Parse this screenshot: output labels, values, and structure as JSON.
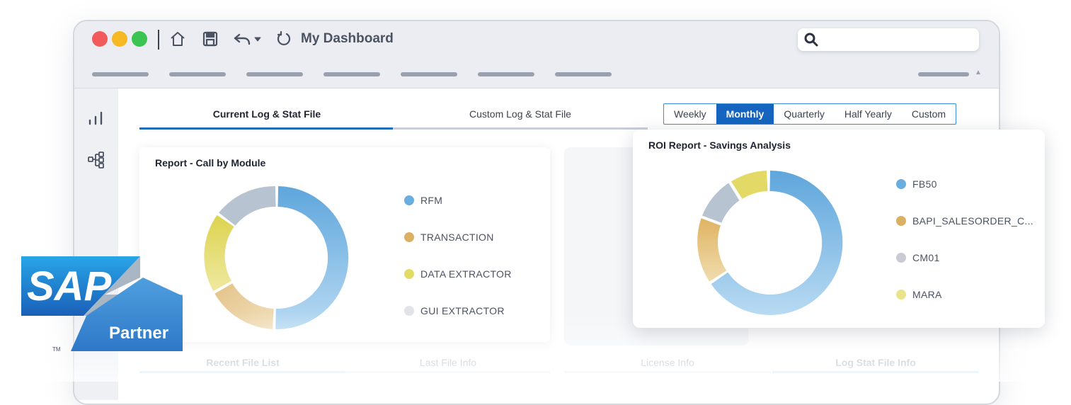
{
  "window": {
    "title": "My Dashboard",
    "search": {
      "placeholder": ""
    },
    "toolbar_icons": [
      "home-icon",
      "save-icon",
      "undo-icon",
      "refresh-icon"
    ],
    "traffic_lights": {
      "red": "#f25b5b",
      "yellow": "#f6b823",
      "green": "#3cc453"
    }
  },
  "sidebar": {
    "icons": [
      "bar-chart-icon",
      "hierarchy-icon"
    ]
  },
  "tabs": [
    {
      "label": "Current Log & Stat File",
      "active": true
    },
    {
      "label": "Custom Log & Stat File",
      "active": false
    }
  ],
  "periods": [
    {
      "label": "Weekly",
      "active": false
    },
    {
      "label": "Monthly",
      "active": true
    },
    {
      "label": "Quarterly",
      "active": false
    },
    {
      "label": "Half Yearly",
      "active": false
    },
    {
      "label": "Custom",
      "active": false
    }
  ],
  "call_by_module": {
    "title": "Report - Call by Module",
    "legend": [
      {
        "label": "RFM",
        "color": "#6aaee0"
      },
      {
        "label": "TRANSACTION",
        "color": "#dcb062"
      },
      {
        "label": "DATA EXTRACTOR",
        "color": "#e2dc66"
      },
      {
        "label": "GUI EXTRACTOR",
        "color": "#e0e3e8"
      }
    ]
  },
  "roi": {
    "title": "ROI Report - Savings Analysis",
    "legend": [
      {
        "label": "FB50",
        "color": "#6aaee0"
      },
      {
        "label": "BAPI_SALESORDER_C...",
        "color": "#dcb062"
      },
      {
        "label": "CM01",
        "color": "#c8ccd2"
      },
      {
        "label": "MARA",
        "color": "#e8e48a"
      }
    ]
  },
  "bottom_tabs": [
    "Recent File List",
    "Last File Info",
    "License Info",
    "Log Stat File Info"
  ],
  "sap_logo": {
    "brand": "SAP",
    "tag": "Partner",
    "trademark": "TM"
  },
  "colors": {
    "accent": "#1565c0",
    "tab_underline": "#1e6fb8"
  }
}
